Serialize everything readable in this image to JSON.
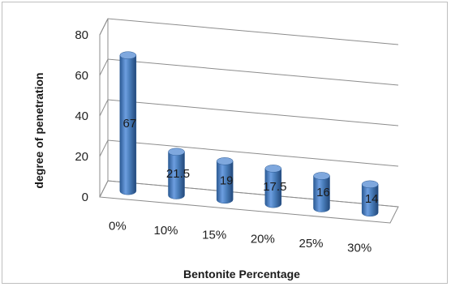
{
  "chart_data": {
    "type": "bar",
    "style": "3d-cylinder",
    "categories": [
      "0%",
      "10%",
      "15%",
      "20%",
      "25%",
      "30%"
    ],
    "values": [
      67,
      21.5,
      19,
      17.5,
      16,
      14
    ],
    "data_labels": [
      "67",
      "21.5",
      "19",
      "17.5",
      "16",
      "14"
    ],
    "xlabel": "Bentonite Percentage",
    "ylabel": "degree of penetration",
    "ylim": [
      0,
      80
    ],
    "yticks": [
      0,
      20,
      40,
      60,
      80
    ],
    "ytick_labels": [
      "0",
      "20",
      "40",
      "60",
      "80"
    ],
    "grid": true,
    "legend": "none",
    "bar_color": "#4a7ebb"
  }
}
